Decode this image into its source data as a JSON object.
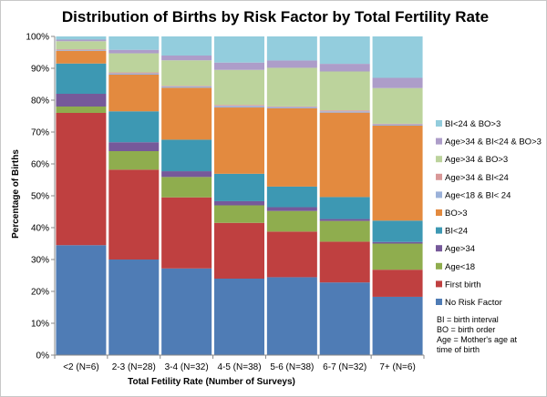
{
  "chart_data": {
    "type": "bar",
    "stacked": true,
    "title": "Distribution of Births by Risk Factor by Total Fertility Rate",
    "xlabel": "Total Fetility Rate (Number of Surveys)",
    "ylabel": "Percentage of Births",
    "ylim": [
      0,
      100
    ],
    "yticks": [
      "0%",
      "10%",
      "20%",
      "30%",
      "40%",
      "50%",
      "60%",
      "70%",
      "80%",
      "90%",
      "100%"
    ],
    "grid": false,
    "legend_position": "right",
    "categories": [
      "<2 (N=6)",
      "2-3 (N=28)",
      "3-4 (N=32)",
      "4-5 (N=38)",
      "5-6 (N=38)",
      "6-7 (N=32)",
      "7+ (N=6)"
    ],
    "series": [
      {
        "name": "No Risk Factor",
        "color": "#4f7cb5",
        "values": [
          34.5,
          30,
          27.2,
          24,
          24.6,
          22.8,
          18.3
        ]
      },
      {
        "name": "First birth",
        "color": "#bf4040",
        "values": [
          41.5,
          28.2,
          22.3,
          17.5,
          14.4,
          12.8,
          8.5
        ]
      },
      {
        "name": "Age<18",
        "color": "#8fad4e",
        "values": [
          2,
          5.8,
          6.4,
          5.5,
          6.5,
          6.5,
          8.2
        ]
      },
      {
        "name": "Age>34",
        "color": "#76599a",
        "values": [
          4,
          2.8,
          1.8,
          1.3,
          1.2,
          0.6,
          0.5
        ]
      },
      {
        "name": "BI<24",
        "color": "#3d98b3",
        "values": [
          9.5,
          9.7,
          9.9,
          8.6,
          6.5,
          6.9,
          6.7
        ]
      },
      {
        "name": "BO>3",
        "color": "#e38a3f",
        "values": [
          4,
          11.5,
          16.3,
          20.8,
          24.7,
          26.5,
          29.8
        ]
      },
      {
        "name": "Age<18 & BI< 24",
        "color": "#9bb1d9",
        "values": [
          0.3,
          0.4,
          0.4,
          0.5,
          0.4,
          0.4,
          0.4
        ]
      },
      {
        "name": "Age>34 & BI<24",
        "color": "#d99898",
        "values": [
          0.2,
          0.3,
          0.2,
          0.3,
          0.2,
          0.3,
          0.2
        ]
      },
      {
        "name": "Age>34 & BO>3",
        "color": "#bcd39c",
        "values": [
          2.5,
          6,
          8,
          11,
          12.2,
          12.2,
          11.2
        ]
      },
      {
        "name": "Age>34 & BI<24 & BO>3",
        "color": "#ad9dc9",
        "values": [
          0.5,
          1.1,
          1.5,
          2.3,
          2.3,
          2.4,
          3.2
        ]
      },
      {
        "name": "BI<24 & BO>3",
        "color": "#93cddd",
        "values": [
          1,
          4.2,
          6,
          8.2,
          7.6,
          8.6,
          13
        ]
      }
    ],
    "legend_order": [
      "BI<24 & BO>3",
      "Age>34 & BI<24 & BO>3",
      "Age>34 & BO>3",
      "Age>34 & BI<24",
      "Age<18 & BI< 24",
      "BO>3",
      "BI<24",
      "Age>34",
      "Age<18",
      "First birth",
      "No Risk Factor"
    ],
    "notes": [
      "BI = birth interval",
      "BO = birth order",
      "Age = Mother's age at",
      "time of birth"
    ]
  }
}
